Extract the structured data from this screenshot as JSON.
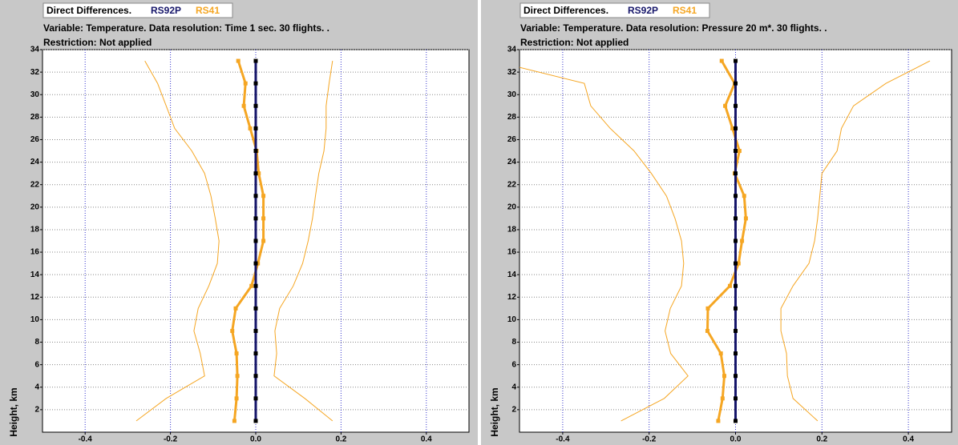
{
  "chart_data": [
    {
      "type": "line",
      "title": "Direct Differences.",
      "subtitle": "Variable: Temperature. Data resolution: Time 1 sec. 30 flights. .",
      "annotation": "Restriction: Not applied",
      "y_label": "Height, km",
      "y": [
        1,
        3,
        5,
        7,
        9,
        11,
        13,
        15,
        17,
        19,
        21,
        23,
        25,
        27,
        29,
        31,
        33
      ],
      "xlim": [
        -0.5,
        0.5
      ],
      "ylim": [
        0,
        34
      ],
      "xticks": [
        -0.4,
        -0.2,
        {
          "value": 0,
          "label": "0.0"
        },
        0.2,
        0.4
      ],
      "yticks": [
        2,
        4,
        6,
        8,
        10,
        12,
        14,
        16,
        18,
        20,
        22,
        24,
        26,
        28,
        30,
        32,
        34
      ],
      "grid": true,
      "series": [
        {
          "name": "RS92P",
          "color": "#16166a",
          "marker_color": "#000000",
          "markers": true,
          "line_width": 3,
          "values": [
            0,
            0,
            0,
            0,
            0,
            0,
            0,
            0,
            0,
            0,
            0,
            0,
            0,
            0,
            0,
            0,
            0
          ]
        },
        {
          "name": "RS41",
          "color": "#f5a623",
          "marker_color": "#f5a623",
          "markers": true,
          "line_width": 3,
          "values": [
            -0.05,
            -0.045,
            -0.043,
            -0.045,
            -0.055,
            -0.047,
            -0.01,
            0.005,
            0.018,
            0.018,
            0.018,
            0.007,
            0.002,
            -0.013,
            -0.028,
            -0.024,
            -0.041
          ]
        },
        {
          "color": "#f5a623",
          "markers": false,
          "line_width": 1,
          "values": [
            -0.28,
            -0.21,
            -0.12,
            -0.13,
            -0.145,
            -0.135,
            -0.11,
            -0.09,
            -0.086,
            -0.095,
            -0.105,
            -0.12,
            -0.15,
            -0.19,
            -0.21,
            -0.23,
            -0.26
          ]
        },
        {
          "color": "#f5a623",
          "markers": false,
          "line_width": 1,
          "values": [
            0.18,
            0.115,
            0.043,
            0.049,
            0.045,
            0.056,
            0.088,
            0.11,
            0.123,
            0.133,
            0.14,
            0.148,
            0.16,
            0.165,
            0.165,
            0.172,
            0.18
          ]
        }
      ]
    },
    {
      "type": "line",
      "title": "Direct Differences.",
      "subtitle": "Variable: Temperature. Data resolution: Pressure 20 m*. 30 flights. .",
      "annotation": "Restriction: Not applied",
      "y_label": "Height, km",
      "y": [
        1,
        3,
        5,
        7,
        9,
        11,
        13,
        15,
        17,
        19,
        21,
        23,
        25,
        27,
        29,
        31,
        33
      ],
      "xlim": [
        -0.5,
        0.5
      ],
      "ylim": [
        0,
        34
      ],
      "xticks": [
        -0.4,
        -0.2,
        {
          "value": 0,
          "label": "0.0"
        },
        0.2,
        0.4
      ],
      "yticks": [
        2,
        4,
        6,
        8,
        10,
        12,
        14,
        16,
        18,
        20,
        22,
        24,
        26,
        28,
        30,
        32,
        34
      ],
      "grid": true,
      "series": [
        {
          "name": "RS92P",
          "color": "#16166a",
          "marker_color": "#000000",
          "markers": true,
          "line_width": 3,
          "values": [
            0,
            0,
            0,
            0,
            0,
            0,
            0,
            0,
            0,
            0,
            0,
            0,
            0,
            0,
            0,
            0,
            0
          ]
        },
        {
          "name": "RS41",
          "color": "#f5a623",
          "marker_color": "#f5a623",
          "markers": true,
          "line_width": 3,
          "values": [
            -0.04,
            -0.03,
            -0.026,
            -0.034,
            -0.065,
            -0.064,
            -0.013,
            0.007,
            0.015,
            0.024,
            0.02,
            -0.002,
            0.009,
            -0.007,
            -0.024,
            -0.002,
            -0.032
          ]
        },
        {
          "color": "#f5a623",
          "markers": false,
          "line_width": 1,
          "values": [
            -0.265,
            -0.165,
            -0.11,
            -0.15,
            -0.163,
            -0.151,
            -0.125,
            -0.12,
            -0.125,
            -0.14,
            -0.16,
            -0.195,
            -0.235,
            -0.29,
            -0.335,
            -0.35,
            -0.56
          ]
        },
        {
          "color": "#f5a623",
          "markers": false,
          "line_width": 1,
          "values": [
            0.19,
            0.133,
            0.12,
            0.118,
            0.105,
            0.105,
            0.133,
            0.17,
            0.183,
            0.19,
            0.195,
            0.2,
            0.235,
            0.245,
            0.273,
            0.348,
            0.45
          ]
        }
      ]
    }
  ]
}
